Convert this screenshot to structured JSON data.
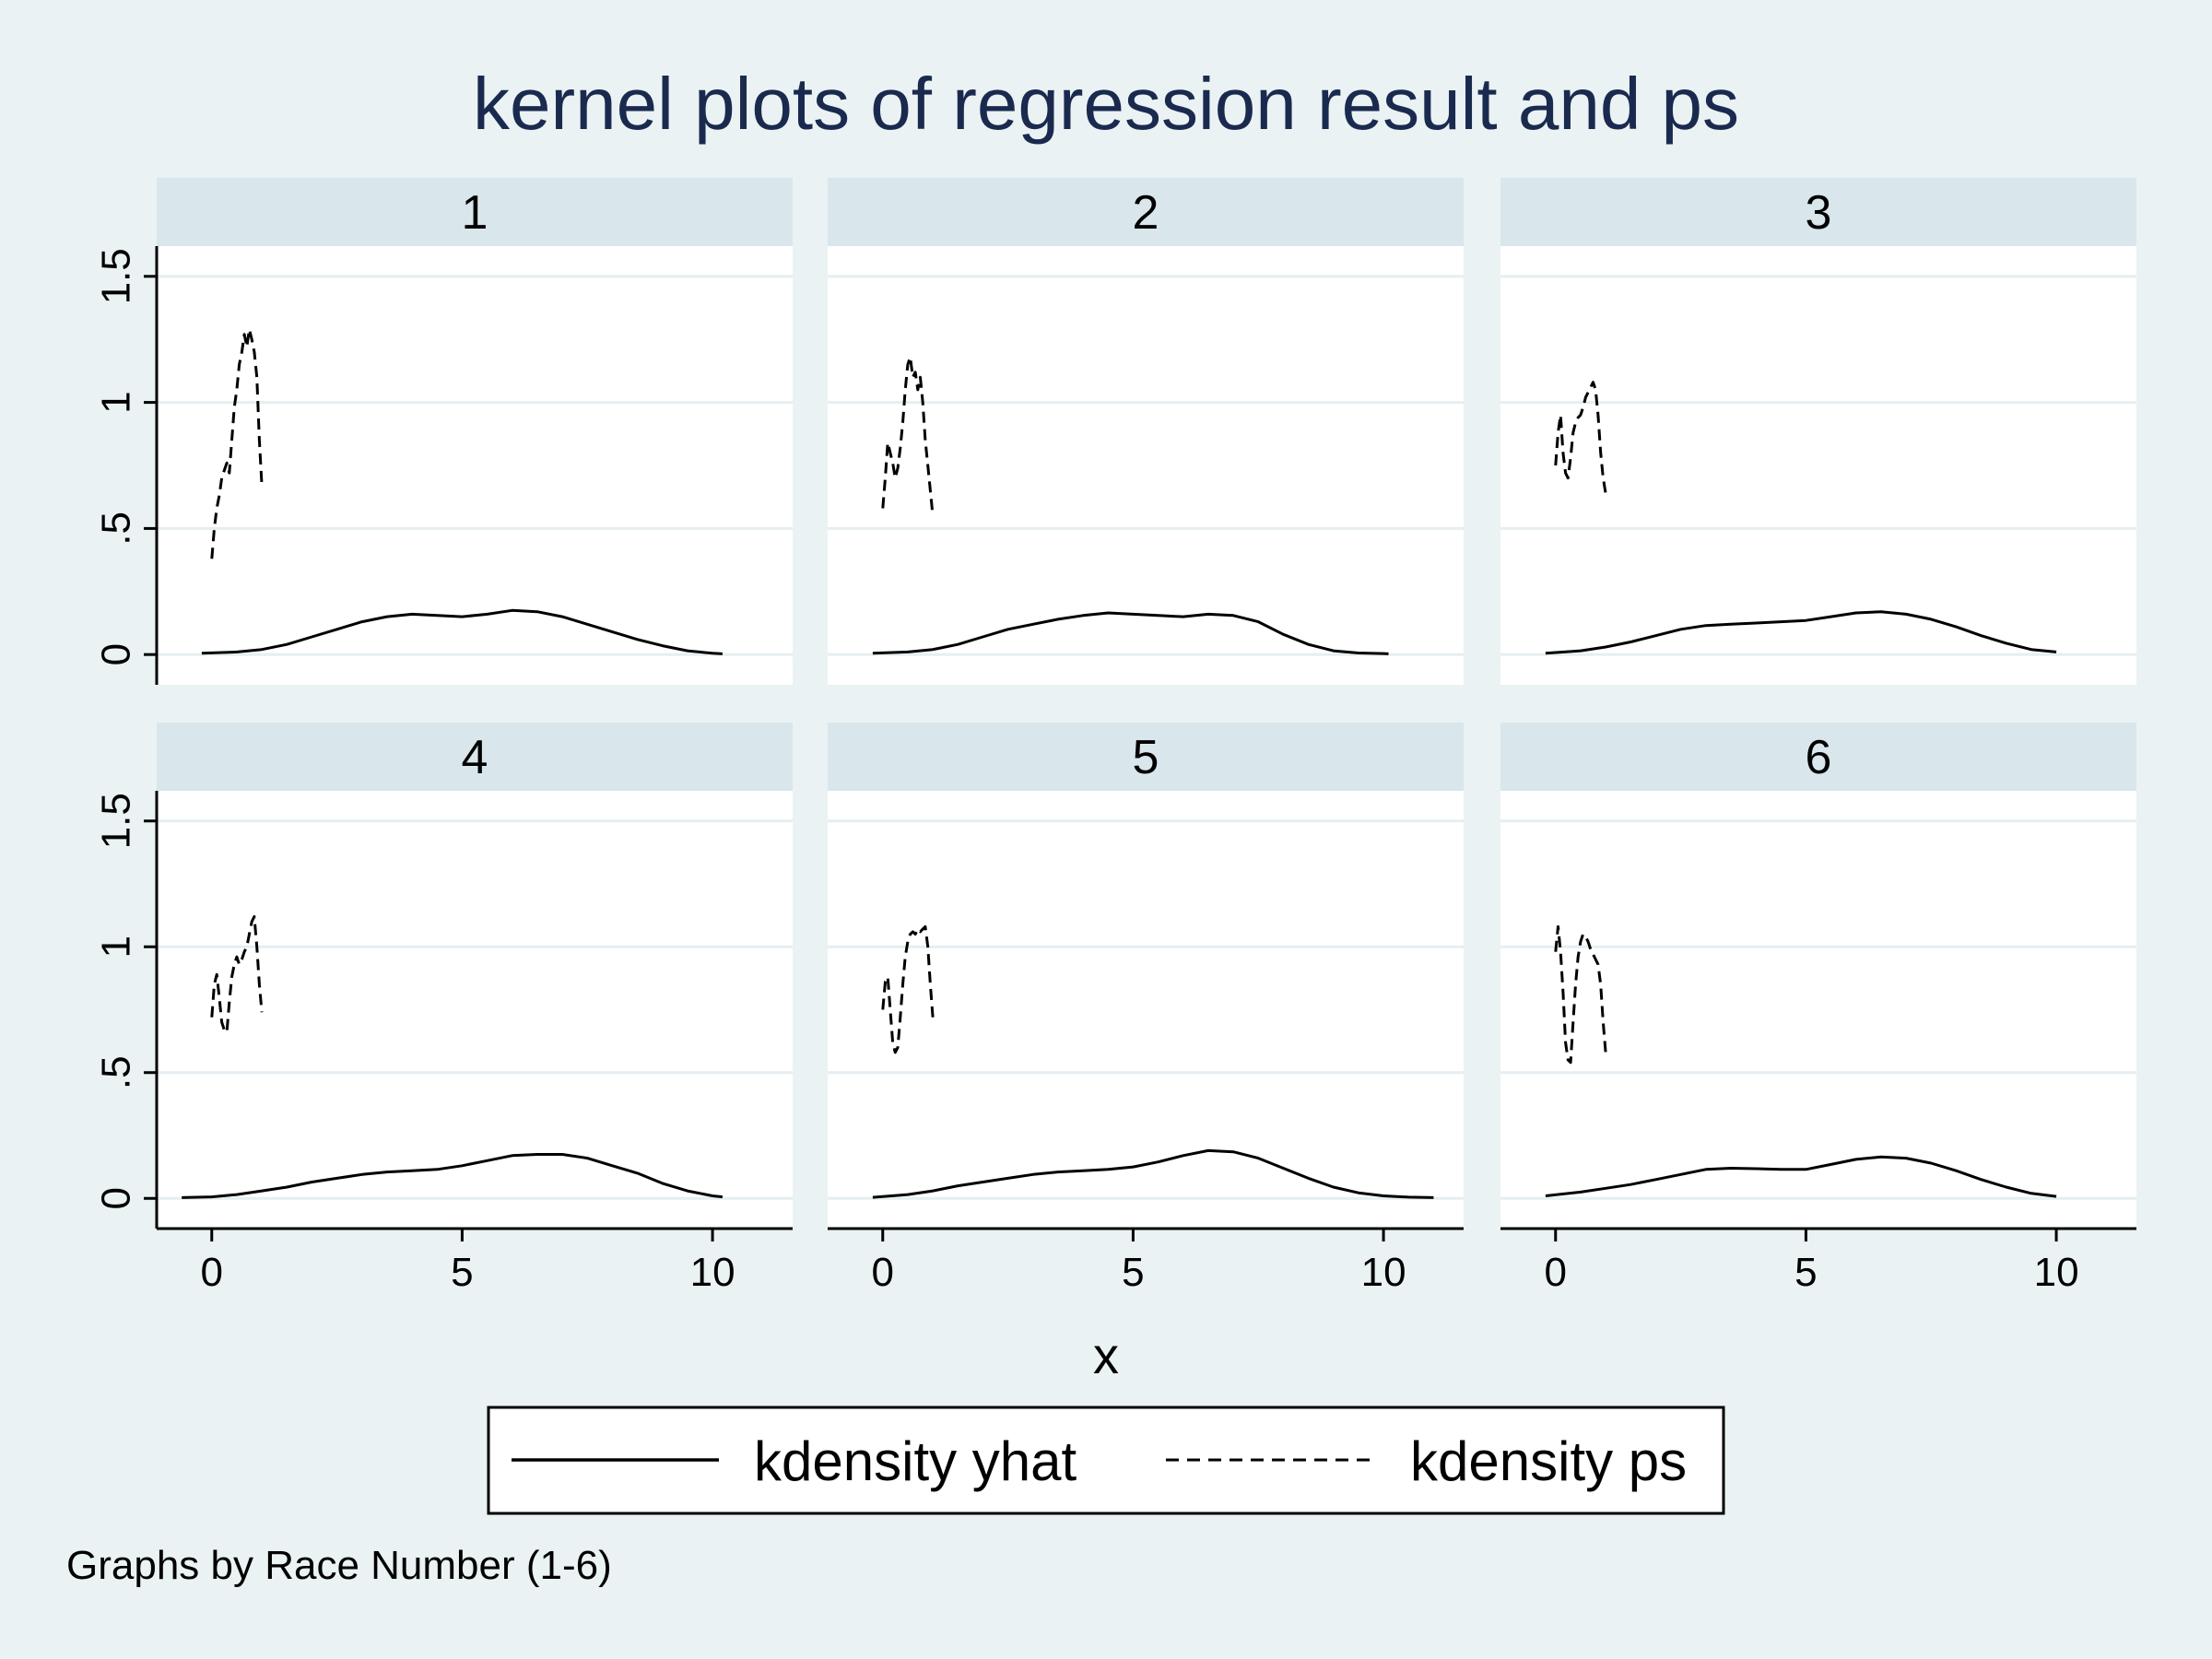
{
  "chart_data": {
    "type": "line",
    "title": "kernel plots of regression result and ps",
    "xlabel": "x",
    "ylabel": "",
    "note": "Graphs by Race Number (1-6)",
    "xlim": [
      -1.1,
      11.6
    ],
    "ylim": [
      -0.12,
      1.62
    ],
    "x_ticks": [
      0,
      5,
      10
    ],
    "x_tick_labels": [
      "0",
      "5",
      "10"
    ],
    "y_ticks": [
      0,
      0.5,
      1,
      1.5
    ],
    "y_tick_labels": [
      "0",
      ".5",
      "1",
      "1.5"
    ],
    "grid": true,
    "legend_position": "bottom",
    "legend": [
      {
        "label": "kdensity yhat",
        "style": "solid"
      },
      {
        "label": "kdensity ps",
        "style": "dashed"
      }
    ],
    "colors": {
      "background": "#eaf2f3",
      "plot_bg": "#ffffff",
      "strip_bg": "#d9e6eb",
      "title": "#1a2a4f",
      "grid": "#e6eef1",
      "line": "#000000"
    },
    "panels": [
      {
        "label": "1",
        "series": [
          {
            "name": "kdensity yhat",
            "style": "solid",
            "x": [
              -0.2,
              0.5,
              1,
              1.5,
              2,
              2.5,
              3,
              3.5,
              4,
              4.5,
              5,
              5.5,
              6,
              6.5,
              7,
              7.5,
              8,
              8.5,
              9,
              9.5,
              10,
              10.2
            ],
            "y": [
              0.005,
              0.01,
              0.02,
              0.04,
              0.07,
              0.1,
              0.13,
              0.15,
              0.16,
              0.155,
              0.15,
              0.16,
              0.175,
              0.17,
              0.15,
              0.12,
              0.09,
              0.06,
              0.035,
              0.015,
              0.005,
              0.003
            ]
          },
          {
            "name": "kdensity ps",
            "style": "dashed",
            "x": [
              0,
              0.05,
              0.1,
              0.15,
              0.2,
              0.25,
              0.3,
              0.35,
              0.4,
              0.45,
              0.5,
              0.55,
              0.6,
              0.65,
              0.7,
              0.75,
              0.8,
              0.85,
              0.9,
              0.95,
              1.0
            ],
            "y": [
              0.38,
              0.5,
              0.58,
              0.63,
              0.7,
              0.73,
              0.76,
              0.72,
              0.85,
              0.98,
              1.05,
              1.15,
              1.2,
              1.27,
              1.22,
              1.29,
              1.25,
              1.2,
              1.1,
              0.85,
              0.67
            ]
          }
        ]
      },
      {
        "label": "2",
        "series": [
          {
            "name": "kdensity yhat",
            "style": "solid",
            "x": [
              -0.2,
              0.5,
              1,
              1.5,
              2,
              2.5,
              3,
              3.5,
              4,
              4.5,
              5,
              5.5,
              6,
              6.5,
              7,
              7.5,
              8,
              8.5,
              9,
              9.5,
              10,
              10.1
            ],
            "y": [
              0.005,
              0.01,
              0.02,
              0.04,
              0.07,
              0.1,
              0.12,
              0.14,
              0.155,
              0.165,
              0.16,
              0.155,
              0.15,
              0.16,
              0.155,
              0.13,
              0.08,
              0.04,
              0.015,
              0.006,
              0.004,
              0.003
            ]
          },
          {
            "name": "kdensity ps",
            "style": "dashed",
            "x": [
              0,
              0.05,
              0.1,
              0.15,
              0.2,
              0.25,
              0.3,
              0.35,
              0.4,
              0.45,
              0.5,
              0.55,
              0.6,
              0.65,
              0.7,
              0.75,
              0.8,
              0.85,
              0.9,
              0.95,
              1.0
            ],
            "y": [
              0.58,
              0.7,
              0.84,
              0.8,
              0.76,
              0.7,
              0.74,
              0.82,
              0.92,
              1.05,
              1.15,
              1.18,
              1.1,
              1.12,
              1.05,
              1.1,
              1.0,
              0.85,
              0.75,
              0.65,
              0.55
            ]
          }
        ]
      },
      {
        "label": "3",
        "series": [
          {
            "name": "kdensity yhat",
            "style": "solid",
            "x": [
              -0.2,
              0.5,
              1,
              1.5,
              2,
              2.5,
              3,
              3.5,
              4,
              4.5,
              5,
              5.5,
              6,
              6.5,
              7,
              7.5,
              8,
              8.5,
              9,
              9.5,
              10
            ],
            "y": [
              0.005,
              0.015,
              0.03,
              0.05,
              0.075,
              0.1,
              0.115,
              0.12,
              0.125,
              0.13,
              0.135,
              0.15,
              0.165,
              0.17,
              0.16,
              0.14,
              0.11,
              0.075,
              0.045,
              0.02,
              0.01
            ]
          },
          {
            "name": "kdensity ps",
            "style": "dashed",
            "x": [
              0,
              0.05,
              0.1,
              0.15,
              0.2,
              0.25,
              0.3,
              0.35,
              0.4,
              0.45,
              0.5,
              0.55,
              0.6,
              0.65,
              0.7,
              0.75,
              0.8,
              0.85,
              0.9,
              0.95,
              1.0
            ],
            "y": [
              0.75,
              0.88,
              0.95,
              0.8,
              0.72,
              0.7,
              0.78,
              0.88,
              0.92,
              0.94,
              0.95,
              0.98,
              1.02,
              1.04,
              1.06,
              1.08,
              1.05,
              0.95,
              0.8,
              0.7,
              0.64
            ]
          }
        ]
      },
      {
        "label": "4",
        "series": [
          {
            "name": "kdensity yhat",
            "style": "solid",
            "x": [
              -0.6,
              0,
              0.5,
              1,
              1.5,
              2,
              2.5,
              3,
              3.5,
              4,
              4.5,
              5,
              5.5,
              6,
              6.5,
              7,
              7.5,
              8,
              8.5,
              9,
              9.5,
              10,
              10.2
            ],
            "y": [
              0.003,
              0.006,
              0.015,
              0.03,
              0.045,
              0.065,
              0.08,
              0.095,
              0.105,
              0.11,
              0.115,
              0.13,
              0.15,
              0.17,
              0.175,
              0.175,
              0.16,
              0.13,
              0.1,
              0.06,
              0.03,
              0.01,
              0.006
            ]
          },
          {
            "name": "kdensity ps",
            "style": "dashed",
            "x": [
              0,
              0.05,
              0.1,
              0.15,
              0.2,
              0.25,
              0.3,
              0.35,
              0.4,
              0.45,
              0.5,
              0.55,
              0.6,
              0.65,
              0.7,
              0.75,
              0.8,
              0.85,
              0.9,
              0.95,
              1.0
            ],
            "y": [
              0.72,
              0.85,
              0.89,
              0.8,
              0.7,
              0.67,
              0.66,
              0.78,
              0.88,
              0.93,
              0.96,
              0.93,
              0.95,
              0.98,
              1.0,
              1.05,
              1.1,
              1.12,
              1.0,
              0.85,
              0.74
            ]
          }
        ]
      },
      {
        "label": "5",
        "series": [
          {
            "name": "kdensity yhat",
            "style": "solid",
            "x": [
              -0.2,
              0.5,
              1,
              1.5,
              2,
              2.5,
              3,
              3.5,
              4,
              4.5,
              5,
              5.5,
              6,
              6.5,
              7,
              7.5,
              8,
              8.5,
              9,
              9.5,
              10,
              10.5,
              11
            ],
            "y": [
              0.004,
              0.015,
              0.03,
              0.05,
              0.065,
              0.08,
              0.095,
              0.105,
              0.11,
              0.115,
              0.125,
              0.145,
              0.17,
              0.19,
              0.185,
              0.16,
              0.12,
              0.08,
              0.045,
              0.022,
              0.01,
              0.005,
              0.003
            ]
          },
          {
            "name": "kdensity ps",
            "style": "dashed",
            "x": [
              0,
              0.05,
              0.1,
              0.15,
              0.2,
              0.25,
              0.3,
              0.35,
              0.4,
              0.45,
              0.5,
              0.55,
              0.6,
              0.65,
              0.7,
              0.75,
              0.8,
              0.85,
              0.9,
              0.95,
              1.0
            ],
            "y": [
              0.75,
              0.86,
              0.88,
              0.75,
              0.62,
              0.58,
              0.6,
              0.72,
              0.85,
              0.96,
              1.02,
              1.05,
              1.06,
              1.05,
              1.07,
              1.06,
              1.07,
              1.08,
              1.0,
              0.85,
              0.72
            ]
          }
        ]
      },
      {
        "label": "6",
        "series": [
          {
            "name": "kdensity yhat",
            "style": "solid",
            "x": [
              -0.2,
              0.5,
              1,
              1.5,
              2,
              2.5,
              3,
              3.5,
              4,
              4.5,
              5,
              5.5,
              6,
              6.5,
              7,
              7.5,
              8,
              8.5,
              9,
              9.5,
              10
            ],
            "y": [
              0.01,
              0.025,
              0.04,
              0.055,
              0.075,
              0.095,
              0.115,
              0.12,
              0.118,
              0.115,
              0.115,
              0.135,
              0.155,
              0.165,
              0.16,
              0.14,
              0.11,
              0.075,
              0.045,
              0.02,
              0.008
            ]
          },
          {
            "name": "kdensity ps",
            "style": "dashed",
            "x": [
              0,
              0.05,
              0.1,
              0.15,
              0.2,
              0.25,
              0.3,
              0.35,
              0.4,
              0.45,
              0.5,
              0.55,
              0.6,
              0.65,
              0.7,
              0.75,
              0.8,
              0.85,
              0.9,
              0.95,
              1.0
            ],
            "y": [
              0.98,
              1.08,
              0.98,
              0.82,
              0.62,
              0.55,
              0.54,
              0.7,
              0.85,
              0.96,
              1.02,
              1.05,
              1.04,
              1.02,
              0.99,
              0.97,
              0.95,
              0.93,
              0.85,
              0.7,
              0.58
            ]
          }
        ]
      }
    ]
  }
}
